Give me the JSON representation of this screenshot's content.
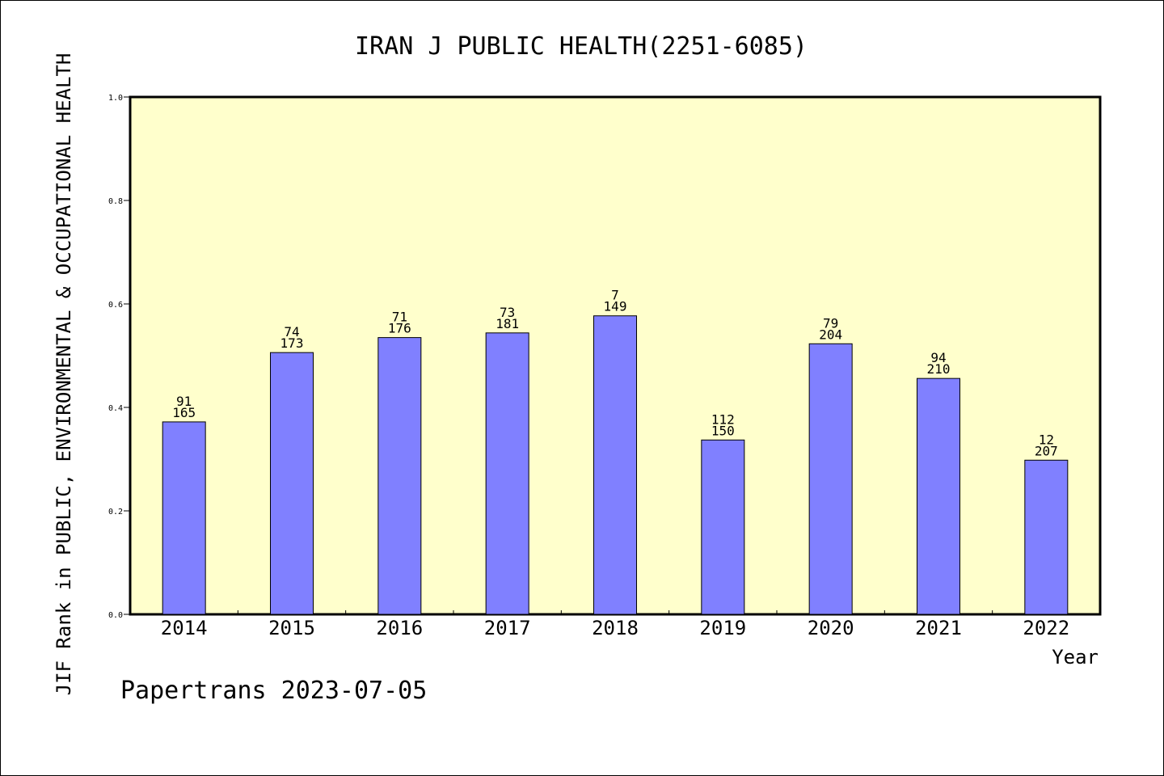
{
  "chart_data": {
    "type": "bar",
    "title": "IRAN J PUBLIC HEALTH(2251-6085)",
    "xlabel": "Year",
    "ylabel": "JIF Rank in PUBLIC, ENVIRONMENTAL & OCCUPATIONAL HEALTH",
    "ylim": [
      0,
      1.0
    ],
    "yticks": [
      "0.0",
      "0.2",
      "0.4",
      "0.6",
      "0.8",
      "1.0"
    ],
    "categories": [
      "2014",
      "2015",
      "2016",
      "2017",
      "2018",
      "2019",
      "2020",
      "2021",
      "2022"
    ],
    "values": [
      0.372,
      0.506,
      0.535,
      0.544,
      0.577,
      0.337,
      0.523,
      0.456,
      0.298
    ],
    "rank_labels": [
      "91",
      "74",
      "71",
      "73",
      "7",
      "112",
      "79",
      "94",
      "12"
    ],
    "total_labels": [
      "165",
      "173",
      "176",
      "181",
      "149",
      "150",
      "204",
      "210",
      "207"
    ],
    "grid": false,
    "colors": {
      "plot_background": "#ffffcc",
      "bar_fill": "#8080ff",
      "bar_stroke": "#000000"
    }
  },
  "footer": {
    "credit": "Papertrans 2023-07-05"
  }
}
